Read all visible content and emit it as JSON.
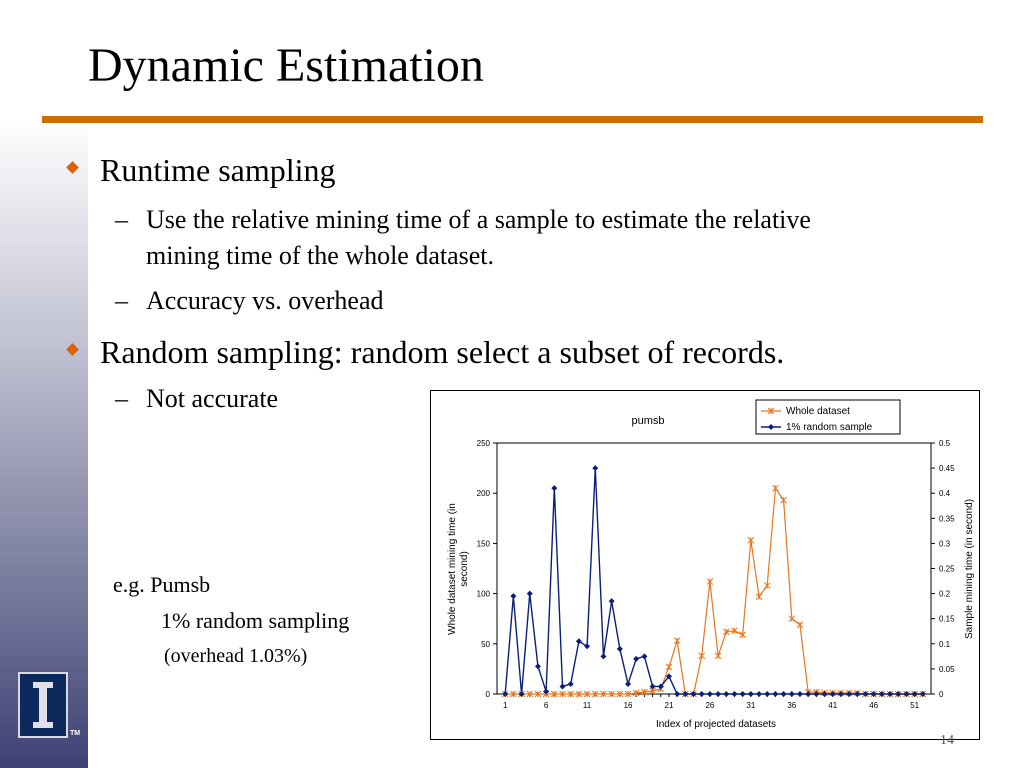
{
  "slide": {
    "title": "Dynamic Estimation",
    "page_number": "14",
    "bullets": [
      {
        "text": "Runtime sampling",
        "sub": [
          "Use the relative mining time of  a sample to estimate the relative",
          "mining time of  the whole dataset.",
          "Accuracy  vs.  overhead"
        ]
      },
      {
        "text": "Random sampling:  random select a subset of  records.",
        "sub": [
          "Not accurate"
        ]
      }
    ],
    "example": {
      "line1": "e.g.  Pumsb",
      "line2": "1% random sampling",
      "line3": "(overhead 1.03%)"
    },
    "dash": "–"
  },
  "colors": {
    "accent_rule": "#cc6f00",
    "bullet": "#e06000",
    "whole_series": "#e8761e",
    "sample_series": "#0a1f7a"
  },
  "chart_data": {
    "type": "line",
    "title": "pumsb",
    "xlabel": "Index of projected datasets",
    "ylabel": "Whole dataset mining time (in second)",
    "ylabel_lines": [
      "Whole dataset mining time (in",
      "second)"
    ],
    "y2label": "Sample mining time (in second)",
    "x": [
      1,
      2,
      3,
      4,
      5,
      6,
      7,
      8,
      9,
      10,
      11,
      12,
      13,
      14,
      15,
      16,
      17,
      18,
      19,
      20,
      21,
      22,
      23,
      24,
      25,
      26,
      27,
      28,
      29,
      30,
      31,
      32,
      33,
      34,
      35,
      36,
      37,
      38,
      39,
      40,
      41,
      42,
      43,
      44,
      45,
      46,
      47,
      48,
      49,
      50,
      51,
      52
    ],
    "x_ticks": [
      "1",
      "6",
      "11",
      "16",
      "21",
      "26",
      "31",
      "36",
      "41",
      "46",
      "51"
    ],
    "ylim": [
      0,
      250
    ],
    "y_ticks": [
      "0",
      "50",
      "100",
      "150",
      "200",
      "250"
    ],
    "y2lim": [
      0,
      0.5
    ],
    "y2_ticks": [
      "0",
      "0.05",
      "0.1",
      "0.15",
      "0.2",
      "0.25",
      "0.3",
      "0.35",
      "0.4",
      "0.45",
      "0.5"
    ],
    "legend_position": "top-right",
    "grid": false,
    "series": [
      {
        "name": "Whole dataset",
        "axis": "left",
        "marker": "star",
        "values": [
          0,
          0,
          0,
          0,
          0,
          0,
          0,
          0,
          0,
          0,
          0,
          0,
          0,
          0,
          0,
          0,
          1,
          2,
          3,
          5,
          27,
          53,
          0,
          0,
          38,
          112,
          38,
          62,
          63,
          59,
          153,
          97,
          108,
          205,
          193,
          75,
          69,
          2,
          2,
          1,
          1,
          1,
          1,
          1,
          0,
          0,
          0,
          0,
          0,
          0,
          0,
          0
        ]
      },
      {
        "name": "1% random sample",
        "axis": "right",
        "marker": "diamond",
        "values": [
          0,
          0.195,
          0,
          0.2,
          0.055,
          0.005,
          0.41,
          0.015,
          0.02,
          0.105,
          0.095,
          0.45,
          0.075,
          0.185,
          0.09,
          0.02,
          0.07,
          0.075,
          0.015,
          0.015,
          0.035,
          0,
          0,
          0,
          0,
          0,
          0,
          0,
          0,
          0,
          0,
          0,
          0,
          0,
          0,
          0,
          0,
          0,
          0,
          0,
          0,
          0,
          0,
          0,
          0,
          0,
          0,
          0,
          0,
          0,
          0,
          0
        ]
      }
    ]
  }
}
